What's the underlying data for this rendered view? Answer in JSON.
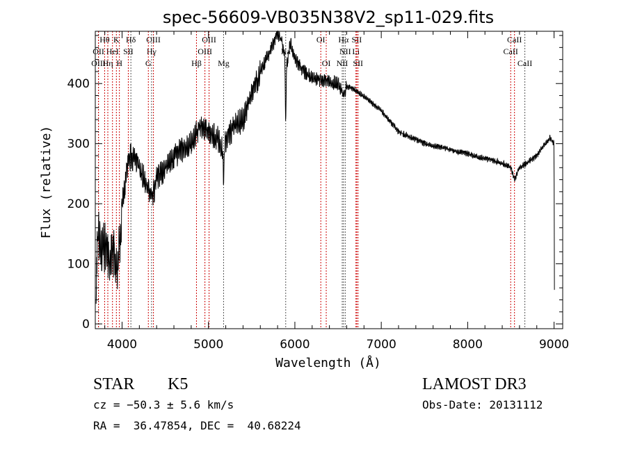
{
  "chart_data": {
    "type": "line",
    "title": "spec-56609-VB035N38V2_sp11-029.fits",
    "xlabel": "Wavelength (Å)",
    "ylabel": "Flux (relative)",
    "xlim": [
      3690,
      9100
    ],
    "ylim": [
      -8,
      487
    ],
    "x_ticks": [
      4000,
      5000,
      6000,
      7000,
      8000,
      9000
    ],
    "y_ticks": [
      0,
      100,
      200,
      300,
      400
    ],
    "grid": false,
    "series": [
      {
        "name": "spectrum",
        "color": "#000000",
        "wavelength": [
          3700,
          3705,
          3720,
          3760,
          3800,
          3850,
          3900,
          3950,
          3980,
          4000,
          4050,
          4100,
          4200,
          4300,
          4350,
          4400,
          4500,
          4600,
          4700,
          4800,
          4900,
          5000,
          5100,
          5160,
          5175,
          5190,
          5300,
          5400,
          5500,
          5600,
          5700,
          5800,
          5850,
          5885,
          5894,
          5903,
          5950,
          6000,
          6100,
          6200,
          6300,
          6500,
          6563,
          6600,
          6700,
          7000,
          7200,
          7500,
          8000,
          8400,
          8500,
          8542,
          8600,
          8800,
          8950,
          9000,
          9005
        ],
        "flux": [
          0,
          120,
          150,
          130,
          130,
          100,
          120,
          100,
          150,
          200,
          250,
          280,
          260,
          230,
          210,
          240,
          260,
          280,
          290,
          300,
          330,
          320,
          310,
          290,
          240,
          300,
          330,
          340,
          380,
          420,
          450,
          480,
          470,
          440,
          320,
          430,
          470,
          440,
          420,
          410,
          405,
          400,
          380,
          395,
          390,
          355,
          320,
          300,
          283,
          268,
          260,
          240,
          260,
          280,
          310,
          300,
          0
        ]
      }
    ],
    "lines": [
      {
        "label": "Hθ",
        "wl": 3798,
        "row": 1,
        "color": "#cc0000"
      },
      {
        "label": "K",
        "wl": 3934,
        "row": 1,
        "color": "#cc0000"
      },
      {
        "label": "Hδ",
        "wl": 4102,
        "row": 1,
        "color": "#555555"
      },
      {
        "label": "OIII",
        "wl": 4363,
        "row": 1,
        "color": "#cc0000"
      },
      {
        "label": "OIII",
        "wl": 5007,
        "row": 1,
        "color": "#cc0000"
      },
      {
        "label": "OI",
        "wl": 6300,
        "row": 1,
        "color": "#cc0000"
      },
      {
        "label": "Hα",
        "wl": 6563,
        "row": 1,
        "color": "#555555"
      },
      {
        "label": "SII",
        "wl": 6716,
        "row": 1,
        "color": "#cc0000"
      },
      {
        "label": "CaII",
        "wl": 8542,
        "row": 1,
        "color": "#cc0000"
      },
      {
        "label": "OII",
        "wl": 3727,
        "row": 2,
        "color": "#cc0000"
      },
      {
        "label": "HeI",
        "wl": 3889,
        "row": 2,
        "color": "#cc0000"
      },
      {
        "label": "SII",
        "wl": 4072,
        "row": 2,
        "color": "#cc0000"
      },
      {
        "label": "Hγ",
        "wl": 4341,
        "row": 2,
        "color": "#555555"
      },
      {
        "label": "OIII",
        "wl": 4959,
        "row": 2,
        "color": "#cc0000"
      },
      {
        "label": "Na",
        "wl": 5894,
        "row": 2,
        "color": "#555555"
      },
      {
        "label": "NII",
        "wl": 6583,
        "row": 2,
        "color": "#555555"
      },
      {
        "label": "Li",
        "wl": 6707,
        "row": 2,
        "color": "#cc0000"
      },
      {
        "label": "CaII",
        "wl": 8498,
        "row": 2,
        "color": "#cc0000"
      },
      {
        "label": "OIII",
        "wl": 3727,
        "row": 3,
        "color": "#cc0000"
      },
      {
        "label": "Hη",
        "wl": 3835,
        "row": 3,
        "color": "#cc0000"
      },
      {
        "label": "H",
        "wl": 3969,
        "row": 3,
        "color": "#cc0000"
      },
      {
        "label": "G",
        "wl": 4304,
        "row": 3,
        "color": "#cc0000"
      },
      {
        "label": "Hβ",
        "wl": 4861,
        "row": 3,
        "color": "#cc0000"
      },
      {
        "label": "Mg",
        "wl": 5175,
        "row": 3,
        "color": "#555555"
      },
      {
        "label": "OI",
        "wl": 6363,
        "row": 3,
        "color": "#cc0000"
      },
      {
        "label": "NII",
        "wl": 6548,
        "row": 3,
        "color": "#555555"
      },
      {
        "label": "SII",
        "wl": 6731,
        "row": 3,
        "color": "#cc0000"
      },
      {
        "label": "CaII",
        "wl": 8662,
        "row": 3,
        "color": "#555555"
      }
    ]
  },
  "info": {
    "class": "STAR",
    "subclass": "K5",
    "survey": "LAMOST DR3",
    "cz": "cz = −50.3 ± 5.6 km/s",
    "obs_date": "Obs-Date: 20131112",
    "coords": "RA =  36.47854, DEC =  40.68224"
  }
}
